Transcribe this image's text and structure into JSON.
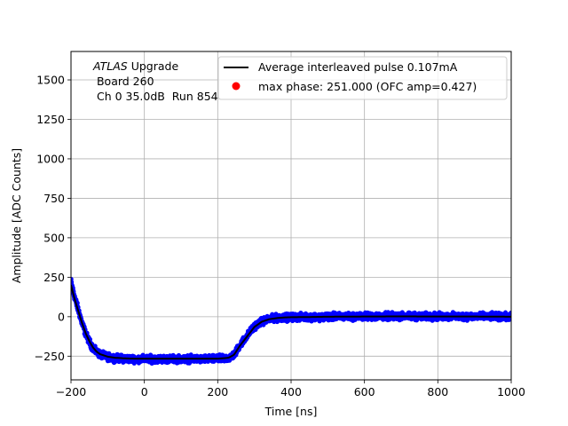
{
  "chart_data": {
    "type": "scatter",
    "xlabel": "Time [ns]",
    "ylabel": "Amplitude [ADC Counts]",
    "xlim": [
      -200,
      1000
    ],
    "ylim": [
      -400,
      1680
    ],
    "x_ticks": [
      -200,
      0,
      200,
      400,
      600,
      800,
      1000
    ],
    "y_ticks": [
      -250,
      0,
      250,
      500,
      750,
      1000,
      1250,
      1500
    ],
    "grid": true,
    "legend_position": "top-right",
    "annotation": {
      "line1_italic": "ATLAS",
      "line1_rest": " Upgrade",
      "line2": " Board 260",
      "line3": " Ch 0 35.0dB  Run 854"
    },
    "series": [
      {
        "name": "",
        "kind": "scatter-samples",
        "color": "#0000ff",
        "x": [
          -200,
          -190,
          -180,
          -170,
          -160,
          -150,
          -140,
          -130,
          -120,
          -100,
          -80,
          -60,
          -40,
          -20,
          0,
          50,
          100,
          150,
          200,
          230,
          245,
          260,
          280,
          300,
          320,
          340,
          360,
          380,
          400,
          450,
          500,
          600,
          700,
          800,
          900,
          1000
        ],
        "y": [
          220,
          120,
          40,
          -40,
          -110,
          -160,
          -200,
          -225,
          -240,
          -255,
          -262,
          -265,
          -267,
          -268,
          -268,
          -268,
          -268,
          -268,
          -268,
          -262,
          -240,
          -180,
          -120,
          -60,
          -30,
          -15,
          -8,
          -5,
          -3,
          -2,
          0,
          2,
          3,
          1,
          2,
          0
        ]
      },
      {
        "name": "Average interleaved pulse 0.107mA",
        "kind": "line",
        "color": "#000000",
        "x": [
          -200,
          -190,
          -180,
          -170,
          -160,
          -150,
          -140,
          -130,
          -120,
          -100,
          -80,
          -60,
          -40,
          -20,
          0,
          50,
          100,
          150,
          200,
          230,
          245,
          260,
          280,
          300,
          320,
          340,
          360,
          380,
          400,
          450,
          500,
          600,
          700,
          800,
          900,
          1000
        ],
        "y": [
          200,
          110,
          35,
          -40,
          -105,
          -155,
          -195,
          -222,
          -238,
          -253,
          -260,
          -263,
          -265,
          -266,
          -266,
          -266,
          -266,
          -266,
          -266,
          -260,
          -240,
          -185,
          -125,
          -65,
          -32,
          -16,
          -9,
          -5,
          -3,
          -2,
          0,
          1,
          2,
          1,
          1,
          0
        ]
      },
      {
        "name": "max phase: 251.000 (OFC amp=0.427)",
        "kind": "marker",
        "color": "#ff0000",
        "x": [],
        "y": []
      }
    ],
    "noise_band": 30
  }
}
